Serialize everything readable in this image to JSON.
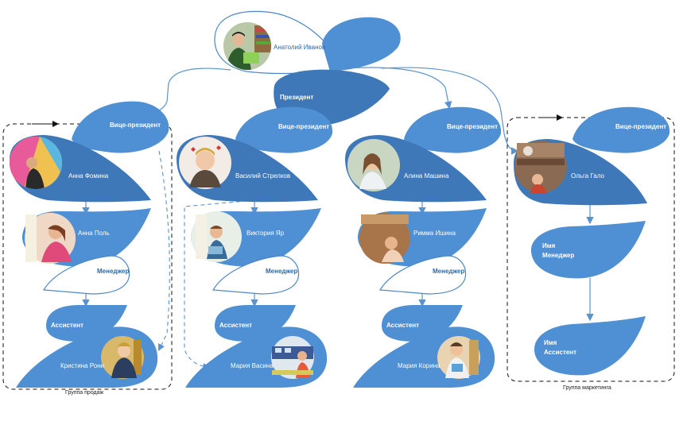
{
  "colors": {
    "primary": "#4f8fd3",
    "dark": "#3f78b8",
    "outline": "#4a86c8",
    "connector": "#5a93cf",
    "label_text_blue": "#2e6aa8",
    "white": "#ffffff"
  },
  "top": {
    "name": "Анатолий Иванов",
    "role": "Президент",
    "photo_icon": "person-photo-icon"
  },
  "columns": [
    {
      "vp_title": "Вице-президент",
      "vp_name": "Анна Фомина",
      "member_name": "Анна Поль",
      "manager_title": "Менеджер",
      "assistant_title": "Ассистент",
      "assistant_name": "Кристина Рони",
      "group_caption": "Группа продаж"
    },
    {
      "vp_title": "Вице-президент",
      "vp_name": "Василий Стрелков",
      "member_name": "Виктория Яр",
      "manager_title": "Менеджер",
      "assistant_title": "Ассистент",
      "assistant_name": "Мария Васина"
    },
    {
      "vp_title": "Вице-президент",
      "vp_name": "Алина Машина",
      "member_name": "Римма Ишина",
      "manager_title": "Менеджер",
      "assistant_title": "Ассистент",
      "assistant_name": "Мария Корина"
    },
    {
      "vp_title": "Вице-президент",
      "vp_name": "Ольга Гало",
      "manager_label": "Имя",
      "manager_title": "Менеджер",
      "assistant_label": "Имя",
      "assistant_title": "Ассистент",
      "group_caption": "Группа маркетинга"
    }
  ]
}
